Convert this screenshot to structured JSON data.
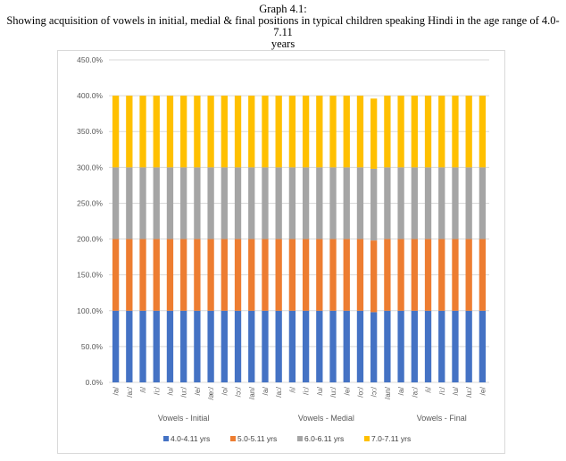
{
  "title_lines": [
    "Graph 4.1:",
    "Showing acquisition of vowels in initial, medial & final positions in typical children speaking Hindi in the age range of 4.0-7.11",
    "years"
  ],
  "chart_data": {
    "type": "bar",
    "stacked": true,
    "categories": [
      "/a/",
      "/a:/",
      "/i/",
      "/i:/",
      "/u/",
      "/u:/",
      "/e/",
      "/æ:/",
      "/o/",
      "/ɔ:/",
      "/an/",
      "/a/",
      "/a:/",
      "/i/",
      "/i:/",
      "/u/",
      "/u:/",
      "/e/",
      "/o:/",
      "/ɔ:/",
      "/an/",
      "/a/",
      "/a:/",
      "/i/",
      "/i:/",
      "/u/",
      "/u:/",
      "/e/"
    ],
    "category_groups": [
      {
        "label": "Vowels -  Initial",
        "start": 0,
        "end": 10
      },
      {
        "label": "Vowels -  Medial",
        "start": 11,
        "end": 20
      },
      {
        "label": "Vowels -  Final",
        "start": 21,
        "end": 27
      }
    ],
    "series": [
      {
        "name": "4.0-4.11 yrs",
        "color": "#4472c4",
        "values": [
          100,
          100,
          100,
          100,
          100,
          100,
          100,
          100,
          100,
          100,
          100,
          100,
          100,
          100,
          100,
          100,
          100,
          100,
          100,
          98,
          100,
          100,
          100,
          100,
          100,
          100,
          100,
          100
        ]
      },
      {
        "name": "5.0-5.11 yrs",
        "color": "#ed7d31",
        "values": [
          100,
          100,
          100,
          100,
          100,
          100,
          100,
          100,
          100,
          100,
          100,
          100,
          100,
          100,
          100,
          100,
          100,
          100,
          100,
          100,
          100,
          100,
          100,
          100,
          100,
          100,
          100,
          100
        ]
      },
      {
        "name": "6.0-6.11 yrs",
        "color": "#a5a5a5",
        "values": [
          100,
          100,
          100,
          100,
          100,
          100,
          100,
          100,
          100,
          100,
          100,
          100,
          100,
          100,
          100,
          100,
          100,
          100,
          100,
          100,
          100,
          100,
          100,
          100,
          100,
          100,
          100,
          100
        ]
      },
      {
        "name": "7.0-7.11 yrs",
        "color": "#ffc000",
        "values": [
          100,
          100,
          100,
          100,
          100,
          100,
          100,
          100,
          100,
          100,
          100,
          100,
          100,
          100,
          100,
          100,
          100,
          100,
          100,
          98,
          100,
          100,
          100,
          100,
          100,
          100,
          100,
          100
        ]
      }
    ],
    "ylim": [
      0,
      450
    ],
    "yticks": [
      "0.0%",
      "50.0%",
      "100.0%",
      "150.0%",
      "200.0%",
      "250.0%",
      "300.0%",
      "350.0%",
      "400.0%",
      "450.0%"
    ],
    "grid": true,
    "legend_position": "bottom"
  }
}
